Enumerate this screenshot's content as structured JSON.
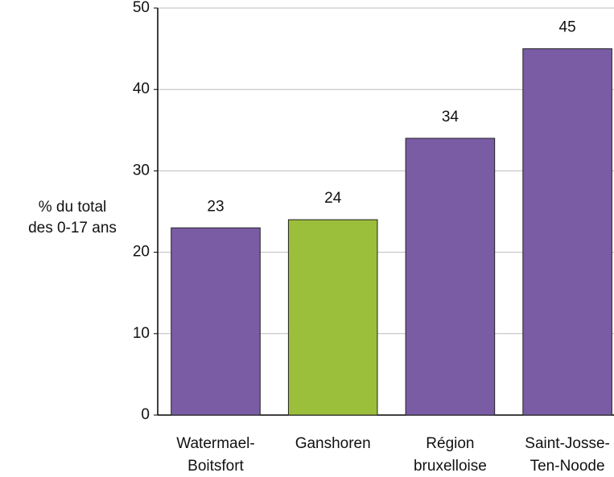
{
  "chart_data": {
    "type": "bar",
    "y_label": [
      "% du total",
      "des 0-17 ans"
    ],
    "categories": [
      [
        "Watermael-",
        "Boitsfort"
      ],
      [
        "Ganshoren"
      ],
      [
        "Région",
        "bruxelloise"
      ],
      [
        "Saint-Josse-",
        "Ten-Noode"
      ]
    ],
    "values": [
      23,
      24,
      34,
      45
    ],
    "colors": [
      "#7a5ca5",
      "#9bbe3b",
      "#7a5ca5",
      "#7a5ca5"
    ],
    "ylim": [
      0,
      50
    ],
    "yticks": [
      0,
      10,
      20,
      30,
      40,
      50
    ],
    "grid": true
  }
}
